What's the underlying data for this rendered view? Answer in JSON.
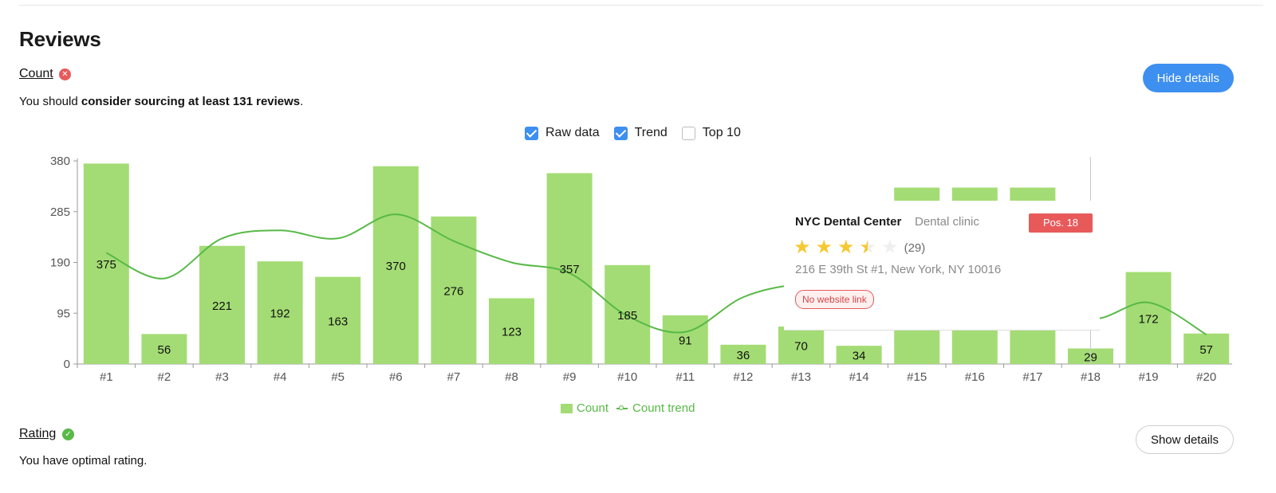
{
  "section": {
    "title": "Reviews",
    "count_link": "Count",
    "count_status_icon": "error-x-icon",
    "count_message_prefix": "You should ",
    "count_message_bold": "consider sourcing at least 131 reviews",
    "count_message_suffix": ".",
    "hide_details_label": "Hide details",
    "rating_link": "Rating",
    "rating_status_icon": "check-icon",
    "rating_message": "You have optimal rating.",
    "show_details_label": "Show details"
  },
  "toggles": [
    {
      "label": "Raw data",
      "checked": true
    },
    {
      "label": "Trend",
      "checked": true
    },
    {
      "label": "Top 10",
      "checked": false
    }
  ],
  "colors": {
    "bar": "#a3dc74",
    "trend": "#58b947",
    "accent": "#3d8ff0",
    "error": "#e85a5a",
    "star": "#f5c932"
  },
  "chart_data": {
    "type": "bar",
    "categories": [
      "#1",
      "#2",
      "#3",
      "#4",
      "#5",
      "#6",
      "#7",
      "#8",
      "#9",
      "#10",
      "#11",
      "#12",
      "#13",
      "#14",
      "#15",
      "#16",
      "#17",
      "#18",
      "#19",
      "#20"
    ],
    "series": [
      {
        "name": "Count",
        "type": "bar",
        "values": [
          375,
          56,
          221,
          192,
          163,
          370,
          276,
          123,
          357,
          185,
          91,
          36,
          70,
          34,
          330,
          330,
          330,
          29,
          172,
          57
        ]
      },
      {
        "name": "Count trend",
        "type": "line",
        "values": [
          208,
          160,
          235,
          250,
          235,
          280,
          230,
          190,
          170,
          90,
          60,
          125,
          150,
          150,
          150,
          150,
          150,
          85,
          115,
          55
        ]
      }
    ],
    "ylim": [
      0,
      380
    ],
    "yticks": [
      0,
      95,
      190,
      285,
      380
    ],
    "legend": [
      "Count",
      "Count trend"
    ],
    "legend_position": "bottom",
    "tooltip_category": "#18"
  },
  "tooltip": {
    "name": "NYC Dental Center",
    "type": "Dental clinic",
    "position": "Pos. 18",
    "rating": 3.5,
    "review_count": "(29)",
    "address": "216 E 39th St #1, New York, NY 10016",
    "badge": "No website link"
  }
}
